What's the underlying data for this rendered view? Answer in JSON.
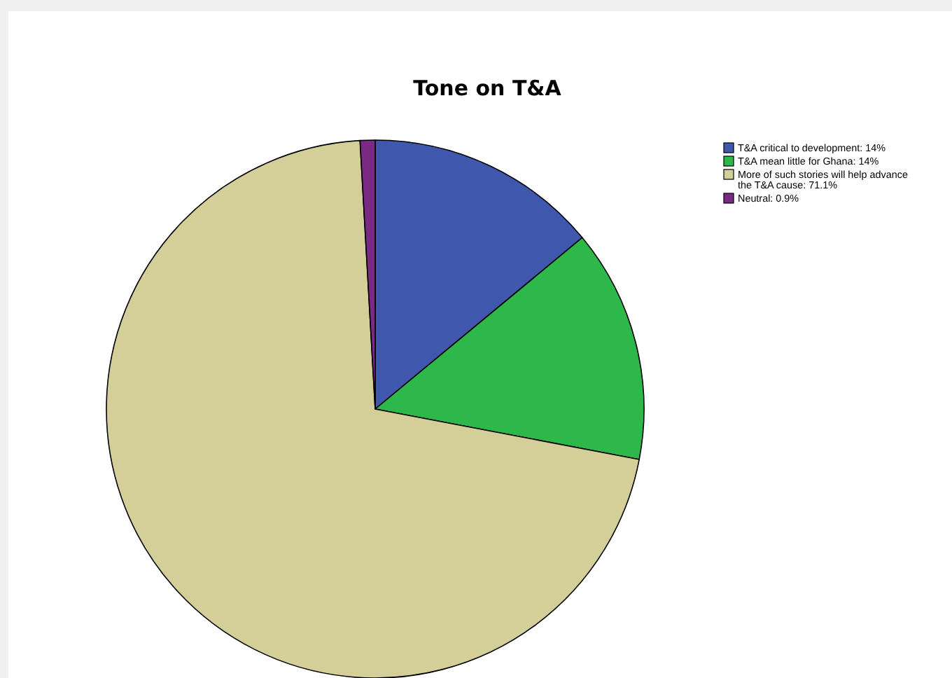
{
  "chart_data": {
    "type": "pie",
    "title": "Tone on T&A",
    "categories": [
      "T&A critical to development: 14%",
      "T&A mean little for Ghana: 14%",
      "More of such stories will help advance the T&A cause: 71.1%",
      "Neutral: 0.9%"
    ],
    "values": [
      14,
      14,
      71.1,
      0.9
    ],
    "colors": [
      "#3f58ae",
      "#2eb84a",
      "#d4cf99",
      "#7b2a83"
    ],
    "legend": "top right"
  }
}
